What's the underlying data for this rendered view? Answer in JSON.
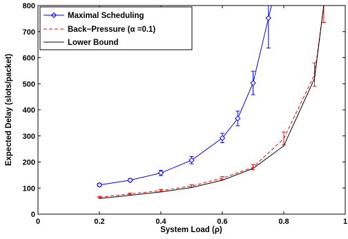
{
  "chart_data": {
    "type": "line",
    "xlabel": "System Load (ρ)",
    "ylabel": "Expected Delay (slots/packet)",
    "xlim": [
      0,
      1
    ],
    "ylim": [
      0,
      800
    ],
    "xticks": [
      "0",
      "0.2",
      "0.4",
      "0.6",
      "0.8",
      "1"
    ],
    "yticks": [
      "0",
      "100",
      "200",
      "300",
      "400",
      "500",
      "600",
      "700",
      "800"
    ],
    "grid": false,
    "legend_position": "top-left",
    "series": [
      {
        "name": "Maximal Scheduling",
        "color": "#0000ff",
        "line": "solid",
        "marker": "diamond",
        "x": [
          0.2,
          0.3,
          0.4,
          0.5,
          0.6,
          0.65,
          0.7,
          0.75,
          0.76
        ],
        "y": [
          112,
          130,
          158,
          207,
          292,
          367,
          503,
          752,
          800
        ],
        "err": [
          6,
          6,
          10,
          14,
          18,
          28,
          45,
          115,
          null
        ]
      },
      {
        "name": "Back−Pressure (α =0.1)",
        "color": "#ff0000",
        "line": "dashed",
        "marker": "none",
        "x": [
          0.2,
          0.3,
          0.4,
          0.5,
          0.6,
          0.7,
          0.8,
          0.9,
          0.93
        ],
        "y": [
          65,
          78,
          90,
          108,
          138,
          180,
          290,
          535,
          800
        ],
        "err": [
          3,
          3,
          4,
          5,
          6,
          10,
          25,
          45,
          65
        ]
      },
      {
        "name": "Lower Bound",
        "color": "#000000",
        "line": "solid",
        "marker": "none",
        "x": [
          0.2,
          0.3,
          0.4,
          0.5,
          0.6,
          0.7,
          0.8,
          0.9,
          0.93
        ],
        "y": [
          60,
          72,
          85,
          102,
          130,
          175,
          262,
          520,
          800
        ],
        "err": []
      }
    ]
  }
}
